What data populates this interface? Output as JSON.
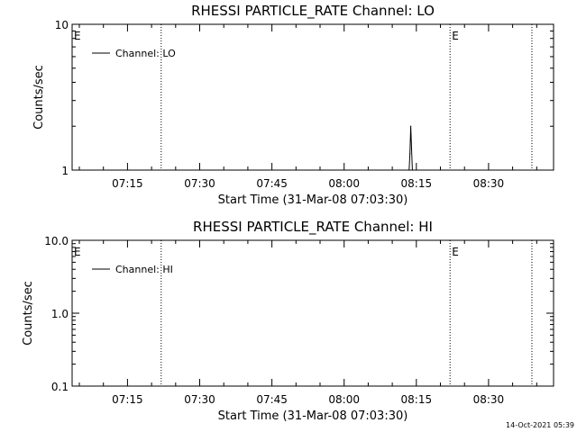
{
  "chart_data": [
    {
      "type": "line",
      "title": "RHESSI PARTICLE_RATE Channel: LO",
      "xlabel": "Start Time (31-Mar-08 07:03:30)",
      "ylabel": "Counts/sec",
      "yscale": "log",
      "ylim": [
        1,
        10
      ],
      "ytick_labels": [
        "1",
        "10"
      ],
      "xlim": [
        "07:03:30",
        "08:43:30"
      ],
      "xtick_labels": [
        "07:15",
        "07:30",
        "07:45",
        "08:00",
        "08:15",
        "08:30"
      ],
      "grid": false,
      "legend": {
        "placement": "top-left",
        "entries": [
          "Channel: LO"
        ]
      },
      "markers": [
        {
          "x": "07:03:30",
          "label": "E",
          "line": false
        },
        {
          "x": "07:22:00",
          "label": "",
          "line": true
        },
        {
          "x": "08:22:00",
          "label": "E",
          "line": true
        },
        {
          "x": "08:39:00",
          "label": "",
          "line": true
        }
      ],
      "series": [
        {
          "name": "Channel: LO",
          "points": [
            {
              "x": "08:13:30",
              "y": 1.0
            },
            {
              "x": "08:13:40",
              "y": 1.3
            },
            {
              "x": "08:13:50",
              "y": 2.0
            },
            {
              "x": "08:14:00",
              "y": 1.4
            },
            {
              "x": "08:14:10",
              "y": 1.0
            }
          ]
        }
      ]
    },
    {
      "type": "line",
      "title": "RHESSI PARTICLE_RATE Channel: HI",
      "xlabel": "Start Time (31-Mar-08 07:03:30)",
      "ylabel": "Counts/sec",
      "yscale": "log",
      "ylim": [
        0.1,
        10
      ],
      "ytick_labels": [
        "0.1",
        "1.0",
        "10.0"
      ],
      "xlim": [
        "07:03:30",
        "08:43:30"
      ],
      "xtick_labels": [
        "07:15",
        "07:30",
        "07:45",
        "08:00",
        "08:15",
        "08:30"
      ],
      "grid": false,
      "legend": {
        "placement": "top-left",
        "entries": [
          "Channel: HI"
        ]
      },
      "markers": [
        {
          "x": "07:03:30",
          "label": "E",
          "line": false
        },
        {
          "x": "07:22:00",
          "label": "",
          "line": true
        },
        {
          "x": "08:22:00",
          "label": "E",
          "line": true
        },
        {
          "x": "08:39:00",
          "label": "",
          "line": true
        }
      ],
      "series": [
        {
          "name": "Channel: HI",
          "points": []
        }
      ]
    }
  ],
  "timestamp": "14-Oct-2021 05:39"
}
